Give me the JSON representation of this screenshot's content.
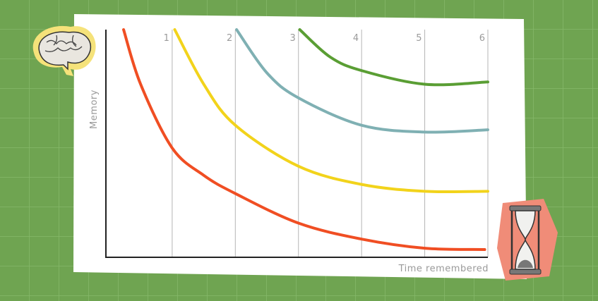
{
  "chart_data": {
    "type": "line",
    "y_label": "Memory",
    "x_label": "Time remembered",
    "xlim": [
      -0.05,
      6
    ],
    "ylim": [
      0,
      100
    ],
    "xticks": [
      1,
      2,
      3,
      4,
      5,
      6
    ],
    "series": [
      {
        "color": "#f04e23",
        "x": [
          0.23,
          0.5,
          1,
          1.5,
          2,
          3,
          4,
          5,
          5.95
        ],
        "values": [
          100,
          76,
          48,
          36,
          28,
          15,
          8,
          4,
          3.4
        ]
      },
      {
        "color": "#f2d31b",
        "x": [
          1.04,
          1.5,
          2,
          3,
          4,
          5,
          6
        ],
        "values": [
          100,
          76,
          58,
          40,
          32,
          29,
          29
        ]
      },
      {
        "color": "#7fb0b3",
        "x": [
          2.02,
          2.5,
          3,
          4,
          5,
          6
        ],
        "values": [
          100,
          81,
          70,
          58,
          55,
          56
        ]
      },
      {
        "color": "#5a9e34",
        "x": [
          3.02,
          3.5,
          4,
          5,
          6
        ],
        "values": [
          100,
          88,
          82,
          76,
          77
        ]
      }
    ]
  }
}
